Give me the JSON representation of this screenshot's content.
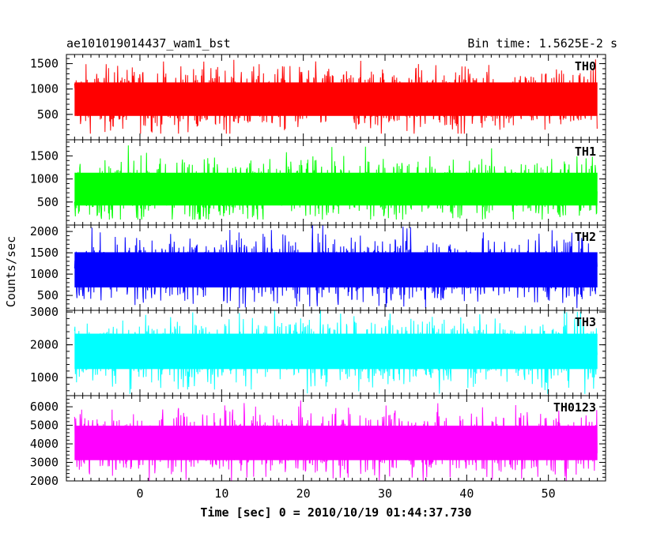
{
  "header": {
    "title": "ae101019014437_wam1_bst",
    "bin_time": "Bin time: 1.5625E-2 s"
  },
  "chart_data": {
    "type": "line",
    "xlabel": "Time [sec] 0 = 2010/10/19 01:44:37.730",
    "ylabel": "Counts/sec",
    "xlim": [
      -9,
      57
    ],
    "x_data_range": [
      -8,
      56
    ],
    "xticks": [
      0,
      10,
      20,
      30,
      40,
      50
    ],
    "xtick_labels": [
      "0",
      "10",
      "20",
      "30",
      "40",
      "50"
    ],
    "panels": [
      {
        "name": "TH0",
        "color": "#ff0000",
        "ylim": [
          0,
          1680
        ],
        "yticks": [
          500,
          1000,
          1500
        ],
        "ytick_labels": [
          "500",
          "1000",
          "1500"
        ],
        "mean": 800,
        "min": 120,
        "max": 1680
      },
      {
        "name": "TH1",
        "color": "#00ff00",
        "ylim": [
          0,
          1850
        ],
        "yticks": [
          500,
          1000,
          1500
        ],
        "ytick_labels": [
          "500",
          "1000",
          "1500"
        ],
        "mean": 780,
        "min": 120,
        "max": 1800
      },
      {
        "name": "TH2",
        "color": "#0000ff",
        "ylim": [
          150,
          2150
        ],
        "yticks": [
          500,
          1000,
          1500,
          2000
        ],
        "ytick_labels": [
          "500",
          "1000",
          "1500",
          "2000"
        ],
        "mean": 1100,
        "min": 200,
        "max": 2150
      },
      {
        "name": "TH3",
        "color": "#00ffff",
        "ylim": [
          450,
          3050
        ],
        "yticks": [
          1000,
          2000,
          3000
        ],
        "ytick_labels": [
          "1000",
          "2000",
          "3000"
        ],
        "mean": 1800,
        "min": 500,
        "max": 3050
      },
      {
        "name": "TH0123",
        "color": "#ff00ff",
        "ylim": [
          2000,
          6600
        ],
        "yticks": [
          2000,
          3000,
          4000,
          5000,
          6000
        ],
        "ytick_labels": [
          "2000",
          "3000",
          "4000",
          "5000",
          "6000"
        ],
        "mean": 4050,
        "min": 2000,
        "max": 6400
      }
    ]
  }
}
